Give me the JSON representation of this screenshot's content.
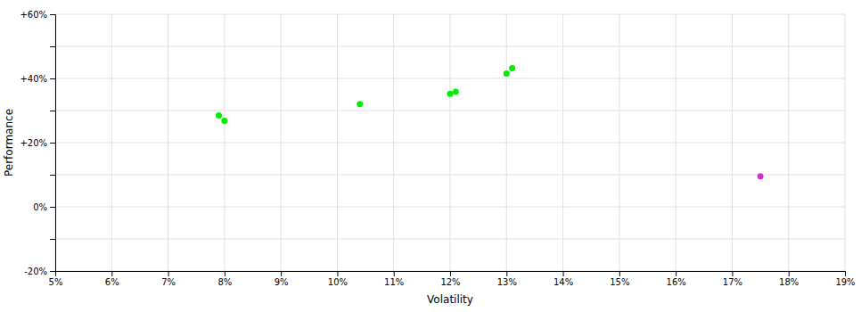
{
  "chart_data": {
    "type": "scatter",
    "xlabel": "Volatility",
    "ylabel": "Performance",
    "xlim": [
      0.05,
      0.19
    ],
    "ylim": [
      -0.2,
      0.6
    ],
    "xticks": [
      {
        "value": 0.05,
        "label": "5%"
      },
      {
        "value": 0.06,
        "label": "6%"
      },
      {
        "value": 0.07,
        "label": "7%"
      },
      {
        "value": 0.08,
        "label": "8%"
      },
      {
        "value": 0.09,
        "label": "9%"
      },
      {
        "value": 0.1,
        "label": "10%"
      },
      {
        "value": 0.11,
        "label": "11%"
      },
      {
        "value": 0.12,
        "label": "12%"
      },
      {
        "value": 0.13,
        "label": "13%"
      },
      {
        "value": 0.14,
        "label": "14%"
      },
      {
        "value": 0.15,
        "label": "15%"
      },
      {
        "value": 0.16,
        "label": "16%"
      },
      {
        "value": 0.17,
        "label": "17%"
      },
      {
        "value": 0.18,
        "label": "18%"
      },
      {
        "value": 0.19,
        "label": "19%"
      }
    ],
    "yticks": [
      {
        "value": -0.2,
        "label": "-20%"
      },
      {
        "value": -0.1,
        "label": null
      },
      {
        "value": 0.0,
        "label": "0%"
      },
      {
        "value": 0.1,
        "label": null
      },
      {
        "value": 0.2,
        "label": "+20%"
      },
      {
        "value": 0.3,
        "label": null
      },
      {
        "value": 0.4,
        "label": "+40%"
      },
      {
        "value": 0.5,
        "label": null
      },
      {
        "value": 0.6,
        "label": "+60%"
      }
    ],
    "grid": true,
    "series": [
      {
        "color": "#00ee00",
        "x": [
          0.079,
          0.08,
          0.104,
          0.12,
          0.121,
          0.13,
          0.131
        ],
        "values": [
          0.285,
          0.268,
          0.32,
          0.352,
          0.358,
          0.415,
          0.432
        ]
      },
      {
        "color": "#cc33cc",
        "x": [
          0.175
        ],
        "values": [
          0.095
        ]
      }
    ]
  }
}
